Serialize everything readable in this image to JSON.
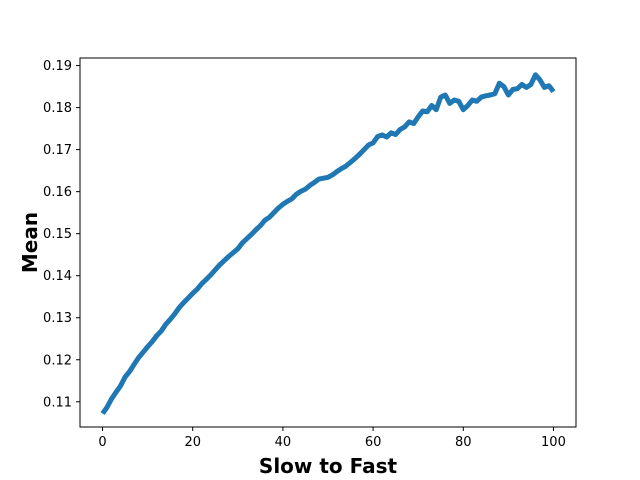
{
  "chart_data": {
    "type": "line",
    "title": "",
    "xlabel": "Slow to Fast",
    "ylabel": "Mean",
    "xlim": [
      -5,
      105
    ],
    "ylim": [
      0.104,
      0.1918
    ],
    "xticks": [
      0,
      20,
      40,
      60,
      80,
      100
    ],
    "yticks": [
      0.11,
      0.12,
      0.13,
      0.14,
      0.15,
      0.16,
      0.17,
      0.18,
      0.19
    ],
    "grid": false,
    "series": [
      {
        "color": "#1f77b4",
        "x": [
          0,
          1,
          2,
          3,
          4,
          5,
          6,
          7,
          8,
          9,
          10,
          11,
          12,
          13,
          14,
          15,
          16,
          17,
          18,
          19,
          20,
          21,
          22,
          23,
          24,
          25,
          26,
          27,
          28,
          29,
          30,
          31,
          32,
          33,
          34,
          35,
          36,
          37,
          38,
          39,
          40,
          41,
          42,
          43,
          44,
          45,
          46,
          47,
          48,
          49,
          50,
          51,
          52,
          53,
          54,
          55,
          56,
          57,
          58,
          59,
          60,
          61,
          62,
          63,
          64,
          65,
          66,
          67,
          68,
          69,
          70,
          71,
          72,
          73,
          74,
          75,
          76,
          77,
          78,
          79,
          80,
          81,
          82,
          83,
          84,
          85,
          86,
          87,
          88,
          89,
          90,
          91,
          92,
          93,
          94,
          95,
          96,
          97,
          98,
          99,
          100
        ],
        "y": [
          0.1072,
          0.1087,
          0.1107,
          0.1123,
          0.1138,
          0.1159,
          0.1172,
          0.1189,
          0.1205,
          0.1218,
          0.1231,
          0.1243,
          0.1257,
          0.1268,
          0.1284,
          0.1296,
          0.1309,
          0.1324,
          0.1336,
          0.1347,
          0.1358,
          0.1368,
          0.1381,
          0.1391,
          0.1402,
          0.1414,
          0.1426,
          0.1436,
          0.1446,
          0.1455,
          0.1464,
          0.1478,
          0.1488,
          0.1498,
          0.1509,
          0.1519,
          0.1532,
          0.1539,
          0.155,
          0.1561,
          0.157,
          0.1577,
          0.1583,
          0.1594,
          0.1601,
          0.1606,
          0.1615,
          0.1622,
          0.163,
          0.1632,
          0.1634,
          0.164,
          0.1648,
          0.1655,
          0.1661,
          0.167,
          0.1679,
          0.1689,
          0.17,
          0.1711,
          0.1716,
          0.1731,
          0.1735,
          0.173,
          0.174,
          0.1736,
          0.1748,
          0.1754,
          0.1766,
          0.1762,
          0.1778,
          0.1792,
          0.179,
          0.1805,
          0.1795,
          0.1825,
          0.183,
          0.181,
          0.1818,
          0.1815,
          0.1795,
          0.1805,
          0.1818,
          0.1815,
          0.1825,
          0.1828,
          0.183,
          0.1833,
          0.1858,
          0.185,
          0.183,
          0.1843,
          0.1845,
          0.1855,
          0.1848,
          0.1855,
          0.1878,
          0.1866,
          0.1848,
          0.1852,
          0.1838
        ]
      }
    ]
  }
}
